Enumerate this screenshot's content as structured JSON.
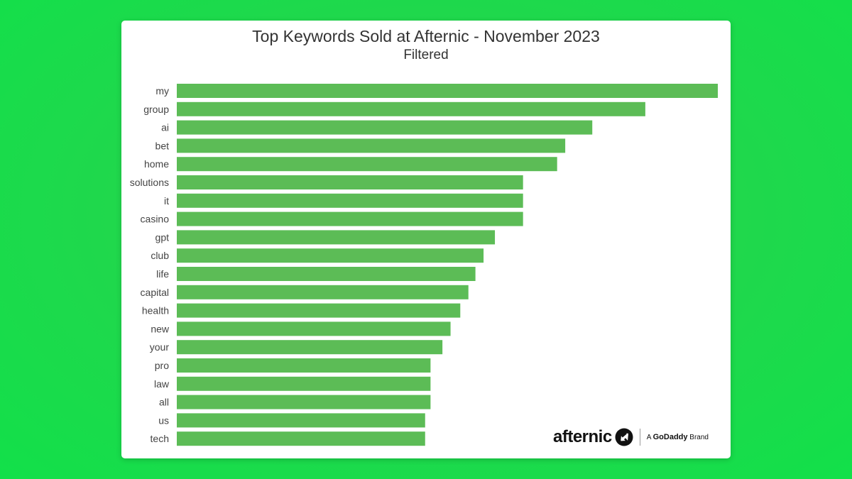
{
  "chart_data": {
    "type": "bar",
    "orientation": "horizontal",
    "title": "Top Keywords Sold at Afternic - November 2023",
    "subtitle": "Filtered",
    "categories": [
      "my",
      "group",
      "ai",
      "bet",
      "home",
      "solutions",
      "it",
      "casino",
      "gpt",
      "club",
      "life",
      "capital",
      "health",
      "new",
      "your",
      "pro",
      "law",
      "all",
      "us",
      "tech"
    ],
    "values": [
      100,
      86.6,
      76.8,
      71.8,
      70.3,
      64,
      64,
      64,
      58.8,
      56.7,
      55.2,
      53.9,
      52.4,
      50.6,
      49.1,
      46.9,
      46.9,
      46.9,
      45.9,
      45.9
    ],
    "xlim": [
      0,
      100
    ],
    "grid": false,
    "legend": "none",
    "bar_color": "#5cbc56"
  },
  "branding": {
    "logo_word": "afternic",
    "tagline_prefix": "A",
    "tagline_brand": "GoDaddy",
    "tagline_suffix": "Brand"
  },
  "colors": {
    "background": "#1fd84c",
    "card": "#ffffff",
    "text": "#333333"
  }
}
